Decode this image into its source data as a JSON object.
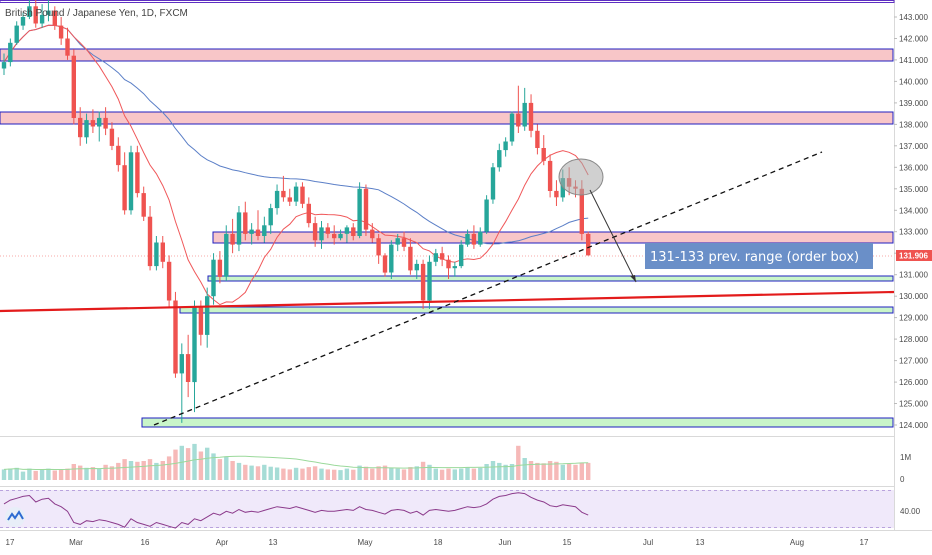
{
  "header": {
    "symbol_title": "British Pound / Japanese Yen, 1D, FXCM"
  },
  "price_axis": {
    "ticks": [
      "143.000",
      "142.000",
      "141.000",
      "140.000",
      "139.000",
      "138.000",
      "137.000",
      "136.000",
      "135.000",
      "134.000",
      "133.000",
      "132.000",
      "131.000",
      "130.000",
      "129.000",
      "128.000",
      "127.000",
      "126.000",
      "125.000",
      "124.000"
    ],
    "last_price": "131.906"
  },
  "volume_axis": {
    "ticks": [
      "1M",
      "0"
    ]
  },
  "rsi_axis": {
    "ticks": [
      "40.00"
    ]
  },
  "time_axis": {
    "ticks": [
      "17",
      "Mar",
      "16",
      "Apr",
      "13",
      "May",
      "18",
      "Jun",
      "15",
      "Jul",
      "13",
      "Aug",
      "17"
    ]
  },
  "annotation": {
    "text": "131-133 prev. range (order box)"
  },
  "colors": {
    "up": "#26a69a",
    "down": "#ef5350",
    "zone_fill": "#f8c6c8",
    "zone_border": "#1f1fc0",
    "green_fill": "#c9f5c9",
    "ma_red": "#f0585a",
    "ma_blue": "#5b7fc7",
    "rsi": "#8b3a8b",
    "label_bg": "#6a8fc8",
    "trend_red": "#e31b1b"
  },
  "chart_data": {
    "type": "candlestick",
    "title": "British Pound / Japanese Yen, 1D, FXCM",
    "ylim": [
      123.6,
      143.9
    ],
    "candles": [
      [
        140.6,
        141.3,
        140.3,
        140.9
      ],
      [
        140.9,
        142.0,
        140.7,
        141.8
      ],
      [
        141.8,
        142.8,
        141.7,
        142.6
      ],
      [
        142.6,
        143.2,
        142.4,
        143.0
      ],
      [
        143.0,
        143.9,
        142.9,
        143.5
      ],
      [
        143.5,
        143.8,
        142.5,
        142.7
      ],
      [
        142.7,
        143.6,
        142.5,
        143.1
      ],
      [
        143.1,
        143.8,
        142.8,
        143.3
      ],
      [
        143.3,
        143.5,
        142.4,
        142.6
      ],
      [
        142.6,
        143.0,
        141.7,
        142.0
      ],
      [
        142.0,
        142.5,
        141.0,
        141.2
      ],
      [
        141.2,
        141.5,
        138.0,
        138.3
      ],
      [
        138.3,
        138.8,
        137.0,
        137.4
      ],
      [
        137.4,
        138.5,
        137.1,
        138.2
      ],
      [
        138.2,
        138.7,
        137.6,
        137.9
      ],
      [
        137.9,
        138.6,
        137.2,
        138.3
      ],
      [
        138.3,
        138.8,
        137.5,
        137.8
      ],
      [
        137.8,
        138.1,
        136.8,
        137.0
      ],
      [
        137.0,
        137.4,
        135.8,
        136.1
      ],
      [
        136.1,
        136.7,
        133.8,
        134.0
      ],
      [
        134.0,
        137.0,
        133.8,
        136.7
      ],
      [
        136.7,
        137.0,
        134.6,
        134.8
      ],
      [
        134.8,
        135.1,
        133.5,
        133.7
      ],
      [
        133.7,
        134.2,
        131.2,
        131.4
      ],
      [
        131.4,
        132.8,
        131.2,
        132.5
      ],
      [
        132.5,
        132.8,
        131.3,
        131.6
      ],
      [
        131.6,
        131.9,
        129.5,
        129.8
      ],
      [
        129.8,
        130.2,
        126.2,
        126.4
      ],
      [
        126.4,
        127.8,
        124.1,
        127.3
      ],
      [
        127.3,
        128.2,
        125.3,
        126.0
      ],
      [
        126.0,
        129.8,
        124.6,
        129.5
      ],
      [
        129.5,
        129.8,
        127.7,
        128.2
      ],
      [
        128.2,
        130.4,
        127.6,
        130.0
      ],
      [
        130.0,
        132.0,
        129.6,
        131.7
      ],
      [
        131.7,
        132.1,
        130.6,
        130.9
      ],
      [
        130.9,
        133.3,
        130.7,
        132.9
      ],
      [
        132.9,
        133.6,
        132.0,
        132.4
      ],
      [
        132.4,
        134.2,
        132.1,
        133.9
      ],
      [
        133.9,
        134.4,
        132.6,
        132.9
      ],
      [
        132.9,
        133.4,
        132.4,
        133.1
      ],
      [
        133.1,
        134.0,
        132.6,
        132.8
      ],
      [
        132.8,
        133.7,
        132.5,
        133.3
      ],
      [
        133.3,
        134.3,
        132.9,
        134.1
      ],
      [
        134.1,
        135.2,
        133.8,
        134.9
      ],
      [
        134.9,
        135.6,
        134.4,
        134.6
      ],
      [
        134.6,
        135.0,
        134.2,
        134.4
      ],
      [
        134.4,
        135.3,
        134.2,
        135.1
      ],
      [
        135.1,
        135.3,
        134.1,
        134.3
      ],
      [
        134.3,
        134.6,
        133.2,
        133.4
      ],
      [
        133.4,
        133.7,
        132.3,
        132.6
      ],
      [
        132.6,
        133.5,
        132.2,
        133.2
      ],
      [
        133.2,
        133.4,
        132.7,
        132.9
      ],
      [
        132.9,
        133.3,
        132.4,
        132.7
      ],
      [
        132.7,
        133.1,
        132.6,
        132.9
      ],
      [
        132.9,
        133.3,
        132.5,
        133.2
      ],
      [
        133.2,
        133.4,
        132.6,
        132.8
      ],
      [
        132.8,
        135.3,
        132.7,
        135.0
      ],
      [
        135.0,
        135.2,
        132.8,
        133.1
      ],
      [
        133.1,
        133.4,
        132.5,
        132.7
      ],
      [
        132.7,
        132.9,
        131.5,
        131.9
      ],
      [
        131.9,
        132.0,
        130.9,
        131.1
      ],
      [
        131.1,
        132.6,
        130.8,
        132.4
      ],
      [
        132.4,
        132.9,
        132.1,
        132.7
      ],
      [
        132.7,
        133.0,
        132.1,
        132.3
      ],
      [
        132.3,
        132.7,
        131.0,
        131.2
      ],
      [
        131.2,
        131.7,
        130.8,
        131.5
      ],
      [
        131.5,
        131.7,
        129.4,
        129.8
      ],
      [
        129.8,
        131.9,
        129.4,
        131.6
      ],
      [
        131.6,
        132.2,
        131.4,
        132.0
      ],
      [
        132.0,
        132.3,
        131.4,
        131.7
      ],
      [
        131.7,
        131.9,
        130.8,
        131.3
      ],
      [
        131.3,
        131.6,
        130.9,
        131.4
      ],
      [
        131.4,
        132.6,
        131.3,
        132.4
      ],
      [
        132.4,
        133.1,
        132.3,
        132.9
      ],
      [
        132.9,
        133.3,
        132.2,
        132.4
      ],
      [
        132.4,
        133.2,
        132.3,
        133.0
      ],
      [
        133.0,
        134.7,
        132.9,
        134.5
      ],
      [
        134.5,
        136.2,
        134.3,
        136.0
      ],
      [
        136.0,
        137.1,
        135.8,
        136.8
      ],
      [
        136.8,
        137.4,
        136.5,
        137.2
      ],
      [
        137.2,
        138.6,
        137.0,
        138.5
      ],
      [
        138.5,
        139.8,
        137.6,
        137.9
      ],
      [
        137.9,
        139.7,
        137.7,
        139.0
      ],
      [
        139.0,
        139.4,
        137.4,
        137.7
      ],
      [
        137.7,
        138.0,
        136.6,
        136.9
      ],
      [
        136.9,
        137.5,
        136.1,
        136.3
      ],
      [
        136.3,
        136.6,
        134.6,
        134.9
      ],
      [
        134.9,
        135.4,
        134.2,
        134.6
      ],
      [
        134.6,
        135.9,
        134.4,
        135.5
      ],
      [
        135.5,
        136.0,
        134.7,
        135.1
      ],
      [
        135.1,
        135.4,
        134.6,
        135.0
      ],
      [
        135.0,
        135.4,
        132.6,
        132.9
      ],
      [
        132.9,
        133.0,
        131.9,
        131.9
      ]
    ],
    "volume": [
      0.28,
      0.3,
      0.32,
      0.22,
      0.3,
      0.24,
      0.28,
      0.3,
      0.25,
      0.27,
      0.3,
      0.42,
      0.38,
      0.32,
      0.34,
      0.3,
      0.4,
      0.36,
      0.45,
      0.55,
      0.5,
      0.48,
      0.5,
      0.55,
      0.45,
      0.5,
      0.62,
      0.8,
      0.9,
      0.84,
      0.95,
      0.75,
      0.85,
      0.7,
      0.55,
      0.62,
      0.5,
      0.45,
      0.4,
      0.38,
      0.36,
      0.4,
      0.35,
      0.33,
      0.3,
      0.28,
      0.32,
      0.3,
      0.34,
      0.36,
      0.3,
      0.28,
      0.27,
      0.26,
      0.3,
      0.27,
      0.38,
      0.35,
      0.3,
      0.36,
      0.38,
      0.32,
      0.3,
      0.28,
      0.34,
      0.36,
      0.48,
      0.4,
      0.3,
      0.27,
      0.3,
      0.28,
      0.3,
      0.34,
      0.3,
      0.32,
      0.42,
      0.5,
      0.45,
      0.4,
      0.42,
      0.9,
      0.58,
      0.5,
      0.45,
      0.44,
      0.5,
      0.48,
      0.4,
      0.42,
      0.4,
      0.46,
      0.45
    ],
    "rsi_ylim": [
      30,
      75
    ],
    "rsi": [
      58,
      62,
      64,
      66,
      67,
      60,
      63,
      64,
      58,
      55,
      50,
      38,
      36,
      40,
      39,
      41,
      40,
      38,
      36,
      33,
      42,
      38,
      36,
      34,
      38,
      36,
      34,
      32,
      38,
      36,
      42,
      40,
      44,
      48,
      46,
      50,
      48,
      52,
      49,
      50,
      49,
      51,
      53,
      55,
      54,
      53,
      55,
      53,
      51,
      49,
      51,
      50,
      50,
      51,
      52,
      51,
      55,
      52,
      51,
      49,
      47,
      51,
      52,
      51,
      48,
      50,
      46,
      51,
      52,
      51,
      50,
      51,
      53,
      55,
      54,
      55,
      58,
      63,
      66,
      67,
      69,
      70,
      69,
      65,
      62,
      60,
      56,
      55,
      57,
      56,
      55,
      49,
      46
    ]
  }
}
